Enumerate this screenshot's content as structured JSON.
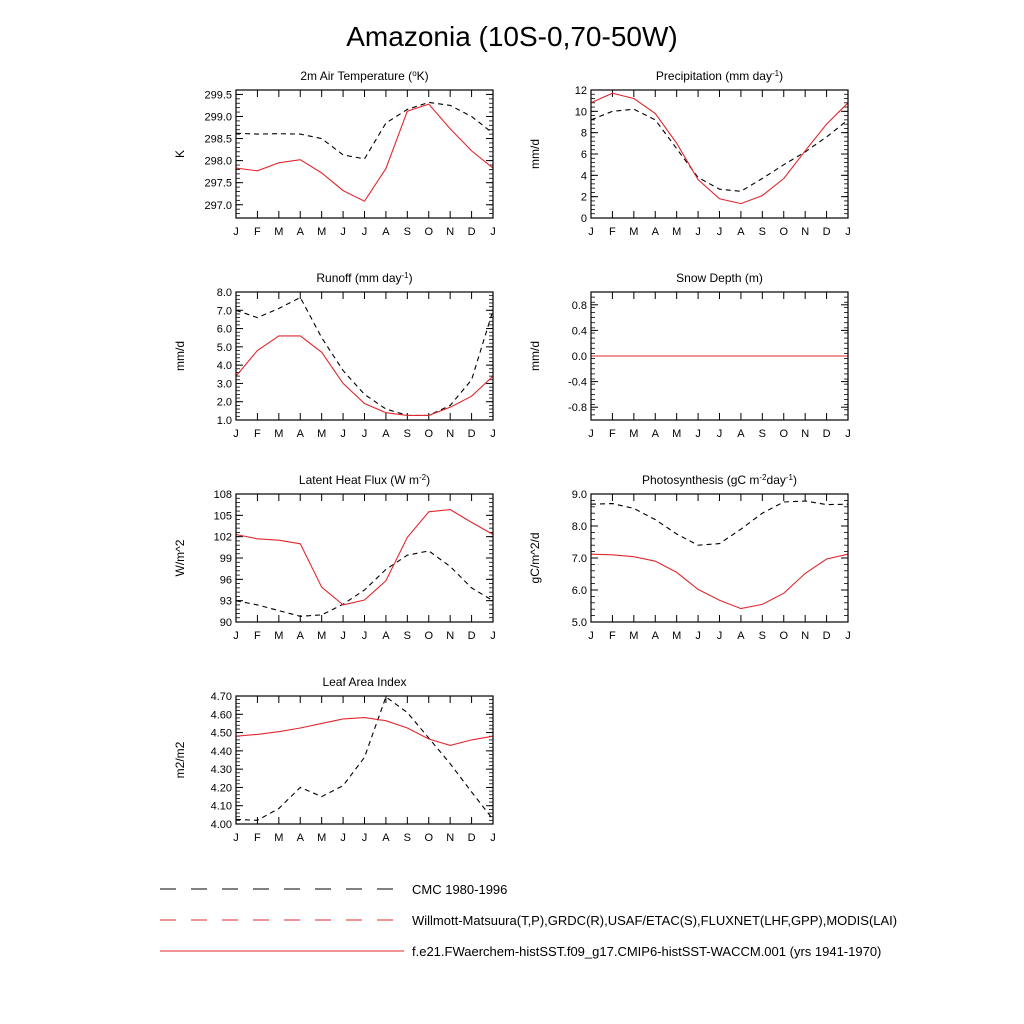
{
  "figure": {
    "title": "Amazonia (10S-0,70-50W)"
  },
  "legend": [
    {
      "label": "CMC 1980-1996",
      "style": "dashed",
      "color": "#000000"
    },
    {
      "label": "Willmott-Matsuura(T,P),GRDC(R),USAF/ETAC(S),FLUXNET(LHF,GPP),MODIS(LAI)",
      "style": "dashed",
      "color": "#000000"
    },
    {
      "label": "f.e21.FWaerchem-histSST.f09_g17.CMIP6-histSST-WACCM.001 (yrs 1941-1970)",
      "style": "solid",
      "color": "#e0282f"
    }
  ],
  "months": [
    "J",
    "F",
    "M",
    "A",
    "M",
    "J",
    "J",
    "A",
    "S",
    "O",
    "N",
    "D",
    "J"
  ],
  "colors": {
    "model": "#e0282f",
    "obs": "#000000"
  },
  "chart_data": [
    {
      "type": "line",
      "title_parts": [
        [
          "2m Air Temperature (",
          ""
        ],
        [
          "o",
          "sup"
        ],
        [
          "K)",
          ""
        ]
      ],
      "ylabel": "K",
      "ylim": [
        296.7,
        299.6
      ],
      "yticks": [
        297.0,
        297.5,
        298.0,
        298.5,
        299.0,
        299.5
      ],
      "ytick_labels": [
        "297.0",
        "297.5",
        "298.0",
        "298.5",
        "299.0",
        "299.5"
      ],
      "series": [
        {
          "role": "obs",
          "values": [
            298.62,
            298.6,
            298.61,
            298.6,
            298.5,
            298.13,
            298.04,
            298.85,
            299.16,
            299.32,
            299.25,
            299.0,
            298.62
          ]
        },
        {
          "role": "model",
          "values": [
            297.83,
            297.77,
            297.95,
            298.02,
            297.72,
            297.32,
            297.08,
            297.82,
            299.12,
            299.28,
            298.72,
            298.22,
            297.83
          ]
        }
      ]
    },
    {
      "type": "line",
      "title_parts": [
        [
          "Precipitation (mm day",
          ""
        ],
        [
          "-1",
          "sup"
        ],
        [
          ")",
          ""
        ]
      ],
      "ylabel": "mm/d",
      "ylim": [
        0,
        12
      ],
      "yticks": [
        0,
        2,
        4,
        6,
        8,
        10,
        12
      ],
      "ytick_labels": [
        "0",
        "2",
        "4",
        "6",
        "8",
        "10",
        "12"
      ],
      "series": [
        {
          "role": "obs",
          "values": [
            9.2,
            10.0,
            10.2,
            9.2,
            6.5,
            3.8,
            2.7,
            2.5,
            3.7,
            5.0,
            6.2,
            7.6,
            9.2
          ]
        },
        {
          "role": "model",
          "values": [
            10.8,
            11.7,
            11.2,
            9.8,
            7.0,
            3.6,
            1.8,
            1.35,
            2.1,
            3.7,
            6.3,
            8.8,
            10.8
          ]
        }
      ]
    },
    {
      "type": "line",
      "title_parts": [
        [
          "Runoff (mm day",
          ""
        ],
        [
          "-1",
          "sup"
        ],
        [
          ")",
          ""
        ]
      ],
      "ylabel": "mm/d",
      "ylim": [
        1.0,
        8.0
      ],
      "yticks": [
        1.0,
        2.0,
        3.0,
        4.0,
        5.0,
        6.0,
        7.0,
        8.0
      ],
      "ytick_labels": [
        "1.0",
        "2.0",
        "3.0",
        "4.0",
        "5.0",
        "6.0",
        "7.0",
        "8.0"
      ],
      "series": [
        {
          "role": "obs",
          "values": [
            7.0,
            6.6,
            7.1,
            7.7,
            5.5,
            3.7,
            2.4,
            1.6,
            1.25,
            1.25,
            1.8,
            3.2,
            7.0
          ]
        },
        {
          "role": "model",
          "values": [
            3.4,
            4.8,
            5.6,
            5.6,
            4.7,
            3.0,
            1.9,
            1.4,
            1.25,
            1.25,
            1.7,
            2.3,
            3.4
          ]
        }
      ]
    },
    {
      "type": "line",
      "title_parts": [
        [
          "Snow Depth (m)",
          ""
        ]
      ],
      "ylabel": "mm/d",
      "ylim": [
        -1.0,
        1.0
      ],
      "yticks": [
        -0.8,
        -0.4,
        0.0,
        0.4,
        0.8
      ],
      "ytick_labels": [
        "-0.8",
        "-0.4",
        "0.0",
        "0.4",
        "0.8"
      ],
      "series": [
        {
          "role": "obs",
          "values": [
            0,
            0,
            0,
            0,
            0,
            0,
            0,
            0,
            0,
            0,
            0,
            0,
            0
          ]
        },
        {
          "role": "model",
          "values": [
            0,
            0,
            0,
            0,
            0,
            0,
            0,
            0,
            0,
            0,
            0,
            0,
            0
          ]
        }
      ]
    },
    {
      "type": "line",
      "title_parts": [
        [
          "Latent Heat Flux (W m",
          ""
        ],
        [
          "-2",
          "sup"
        ],
        [
          ")",
          ""
        ]
      ],
      "ylabel": "W/m^2",
      "ylim": [
        90,
        108
      ],
      "yticks": [
        90,
        93,
        96,
        99,
        102,
        105,
        108
      ],
      "ytick_labels": [
        "90",
        "93",
        "96",
        "99",
        "102",
        "105",
        "108"
      ],
      "series": [
        {
          "role": "obs",
          "values": [
            93.0,
            92.4,
            91.6,
            90.8,
            91.0,
            92.5,
            94.5,
            97.4,
            99.4,
            100.0,
            97.8,
            94.8,
            93.0
          ]
        },
        {
          "role": "model",
          "values": [
            102.3,
            101.7,
            101.5,
            101.0,
            94.9,
            92.4,
            93.1,
            95.8,
            101.9,
            105.5,
            105.8,
            104.0,
            102.3
          ]
        }
      ]
    },
    {
      "type": "line",
      "title_parts": [
        [
          "Photosynthesis (gC m",
          ""
        ],
        [
          "-2",
          "sup"
        ],
        [
          "day",
          ""
        ],
        [
          "-1",
          "sup"
        ],
        [
          ")",
          ""
        ]
      ],
      "ylabel": "gC/m^2/d",
      "ylim": [
        5.0,
        9.0
      ],
      "yticks": [
        5.0,
        6.0,
        7.0,
        8.0,
        9.0
      ],
      "ytick_labels": [
        "5.0",
        "6.0",
        "7.0",
        "8.0",
        "9.0"
      ],
      "series": [
        {
          "role": "obs",
          "values": [
            8.68,
            8.7,
            8.55,
            8.2,
            7.75,
            7.4,
            7.45,
            7.9,
            8.4,
            8.75,
            8.78,
            8.67,
            8.68
          ]
        },
        {
          "role": "model",
          "values": [
            7.12,
            7.1,
            7.04,
            6.9,
            6.55,
            6.02,
            5.68,
            5.42,
            5.55,
            5.9,
            6.52,
            6.97,
            7.12
          ]
        }
      ]
    },
    {
      "type": "line",
      "title_parts": [
        [
          "Leaf Area Index",
          ""
        ]
      ],
      "ylabel": "m2/m2",
      "ylim": [
        4.0,
        4.7
      ],
      "yticks": [
        4.0,
        4.1,
        4.2,
        4.3,
        4.4,
        4.5,
        4.6,
        4.7
      ],
      "ytick_labels": [
        "4.00",
        "4.10",
        "4.20",
        "4.30",
        "4.40",
        "4.50",
        "4.60",
        "4.70"
      ],
      "series": [
        {
          "role": "obs",
          "values": [
            4.025,
            4.02,
            4.085,
            4.2,
            4.15,
            4.21,
            4.365,
            4.695,
            4.61,
            4.47,
            4.33,
            4.175,
            4.025
          ]
        },
        {
          "role": "model",
          "values": [
            4.48,
            4.49,
            4.505,
            4.525,
            4.55,
            4.575,
            4.582,
            4.565,
            4.525,
            4.465,
            4.43,
            4.46,
            4.48
          ]
        }
      ]
    }
  ]
}
